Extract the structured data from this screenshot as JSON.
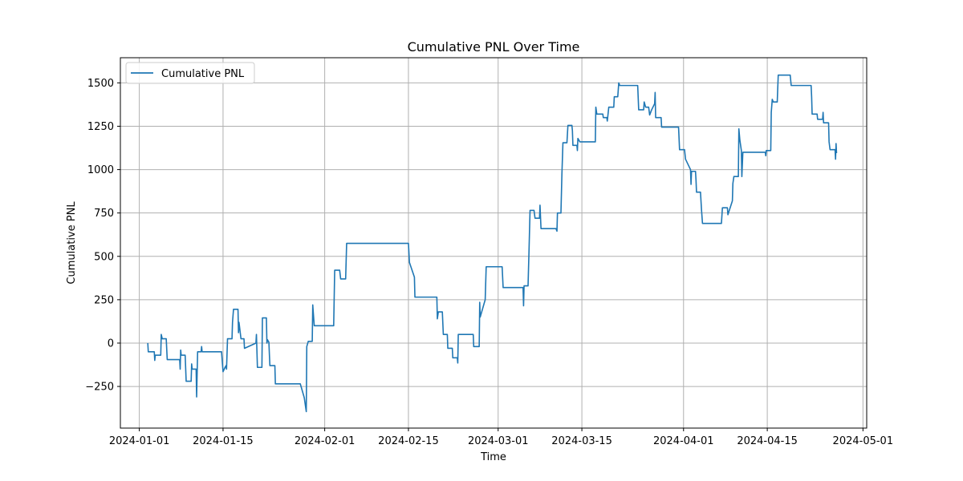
{
  "chart_data": {
    "type": "line",
    "title": "Cumulative PNL Over Time",
    "xlabel": "Time",
    "ylabel": "Cumulative PNL",
    "grid": true,
    "legend_placement": "upper-left",
    "colors": {
      "series": "#1f77b4",
      "grid": "#b0b0b0"
    },
    "x_ticks": [
      "2024-01-01",
      "2024-01-15",
      "2024-02-01",
      "2024-02-15",
      "2024-03-01",
      "2024-03-15",
      "2024-04-01",
      "2024-04-15",
      "2024-05-01"
    ],
    "y_ticks": [
      -250,
      0,
      250,
      500,
      750,
      1000,
      1250,
      1500
    ],
    "y_tick_labels": [
      "−250",
      "0",
      "250",
      "500",
      "750",
      "1000",
      "1250",
      "1500"
    ],
    "xlim": [
      "2023-12-28T20:00",
      "2024-05-01T15:00"
    ],
    "ylim": [
      -490,
      1645
    ],
    "series": [
      {
        "name": "Cumulative PNL",
        "points": [
          [
            "2024-01-02T10:00",
            0
          ],
          [
            "2024-01-02T12:00",
            -50
          ],
          [
            "2024-01-03T12:00",
            -50
          ],
          [
            "2024-01-03T14:00",
            -100
          ],
          [
            "2024-01-03T16:00",
            -70
          ],
          [
            "2024-01-04T14:00",
            -70
          ],
          [
            "2024-01-04T16:00",
            50
          ],
          [
            "2024-01-04T20:00",
            25
          ],
          [
            "2024-01-05T12:00",
            25
          ],
          [
            "2024-01-05T16:00",
            -95
          ],
          [
            "2024-01-07T18:00",
            -95
          ],
          [
            "2024-01-07T20:00",
            -150
          ],
          [
            "2024-01-07T22:00",
            -40
          ],
          [
            "2024-01-08T00:00",
            -70
          ],
          [
            "2024-01-08T16:00",
            -70
          ],
          [
            "2024-01-08T20:00",
            -220
          ],
          [
            "2024-01-09T16:00",
            -220
          ],
          [
            "2024-01-09T18:00",
            -120
          ],
          [
            "2024-01-09T20:00",
            -150
          ],
          [
            "2024-01-10T12:00",
            -150
          ],
          [
            "2024-01-10T14:00",
            -310
          ],
          [
            "2024-01-10T18:00",
            -50
          ],
          [
            "2024-01-11T08:00",
            -50
          ],
          [
            "2024-01-11T10:00",
            -20
          ],
          [
            "2024-01-11T12:00",
            -50
          ],
          [
            "2024-01-14T18:00",
            -50
          ],
          [
            "2024-01-15T00:00",
            -165
          ],
          [
            "2024-01-15T08:00",
            -140
          ],
          [
            "2024-01-15T12:00",
            -130
          ],
          [
            "2024-01-15T14:00",
            -150
          ],
          [
            "2024-01-15T18:00",
            25
          ],
          [
            "2024-01-16T12:00",
            25
          ],
          [
            "2024-01-16T14:00",
            120
          ],
          [
            "2024-01-16T18:00",
            195
          ],
          [
            "2024-01-17T12:00",
            195
          ],
          [
            "2024-01-17T14:00",
            60
          ],
          [
            "2024-01-17T16:00",
            120
          ],
          [
            "2024-01-18T00:00",
            25
          ],
          [
            "2024-01-18T12:00",
            25
          ],
          [
            "2024-01-18T14:00",
            -30
          ],
          [
            "2024-01-20T12:00",
            0
          ],
          [
            "2024-01-20T14:00",
            50
          ],
          [
            "2024-01-20T18:00",
            -140
          ],
          [
            "2024-01-21T12:00",
            -140
          ],
          [
            "2024-01-21T14:00",
            145
          ],
          [
            "2024-01-22T06:00",
            145
          ],
          [
            "2024-01-22T08:00",
            0
          ],
          [
            "2024-01-22T10:00",
            20
          ],
          [
            "2024-01-22T16:00",
            5
          ],
          [
            "2024-01-22T18:00",
            -65
          ],
          [
            "2024-01-22T20:00",
            -130
          ],
          [
            "2024-01-23T16:00",
            -130
          ],
          [
            "2024-01-23T18:00",
            -235
          ],
          [
            "2024-01-27T22:00",
            -235
          ],
          [
            "2024-01-28T14:00",
            -315
          ],
          [
            "2024-01-28T22:00",
            -395
          ],
          [
            "2024-01-29T00:00",
            -20
          ],
          [
            "2024-01-29T06:00",
            10
          ],
          [
            "2024-01-29T22:00",
            10
          ],
          [
            "2024-01-30T00:00",
            220
          ],
          [
            "2024-01-30T06:00",
            100
          ],
          [
            "2024-02-02T12:00",
            100
          ],
          [
            "2024-02-02T16:00",
            420
          ],
          [
            "2024-02-03T12:00",
            420
          ],
          [
            "2024-02-03T16:00",
            370
          ],
          [
            "2024-02-04T12:00",
            370
          ],
          [
            "2024-02-04T16:00",
            575
          ],
          [
            "2024-02-15T00:00",
            575
          ],
          [
            "2024-02-15T04:00",
            465
          ],
          [
            "2024-02-16T00:00",
            380
          ],
          [
            "2024-02-16T02:00",
            265
          ],
          [
            "2024-02-19T18:00",
            265
          ],
          [
            "2024-02-19T20:00",
            140
          ],
          [
            "2024-02-20T00:00",
            180
          ],
          [
            "2024-02-20T16:00",
            180
          ],
          [
            "2024-02-20T20:00",
            50
          ],
          [
            "2024-02-21T12:00",
            50
          ],
          [
            "2024-02-21T14:00",
            -30
          ],
          [
            "2024-02-22T08:00",
            -30
          ],
          [
            "2024-02-22T10:00",
            -85
          ],
          [
            "2024-02-23T04:00",
            -85
          ],
          [
            "2024-02-23T06:00",
            -115
          ],
          [
            "2024-02-23T08:00",
            50
          ],
          [
            "2024-02-25T20:00",
            50
          ],
          [
            "2024-02-25T22:00",
            -20
          ],
          [
            "2024-02-26T20:00",
            -20
          ],
          [
            "2024-02-26T22:00",
            235
          ],
          [
            "2024-02-27T00:00",
            150
          ],
          [
            "2024-02-27T20:00",
            250
          ],
          [
            "2024-02-28T00:00",
            440
          ],
          [
            "2024-03-01T16:00",
            440
          ],
          [
            "2024-03-01T20:00",
            320
          ],
          [
            "2024-03-05T04:00",
            320
          ],
          [
            "2024-03-05T06:00",
            215
          ],
          [
            "2024-03-05T08:00",
            330
          ],
          [
            "2024-03-06T00:00",
            330
          ],
          [
            "2024-03-06T04:00",
            540
          ],
          [
            "2024-03-06T08:00",
            765
          ],
          [
            "2024-03-07T00:00",
            765
          ],
          [
            "2024-03-07T04:00",
            720
          ],
          [
            "2024-03-07T22:00",
            720
          ],
          [
            "2024-03-08T00:00",
            795
          ],
          [
            "2024-03-08T04:00",
            660
          ],
          [
            "2024-03-10T16:00",
            660
          ],
          [
            "2024-03-10T20:00",
            645
          ],
          [
            "2024-03-10T22:00",
            750
          ],
          [
            "2024-03-11T12:00",
            750
          ],
          [
            "2024-03-11T16:00",
            980
          ],
          [
            "2024-03-11T20:00",
            1155
          ],
          [
            "2024-03-12T12:00",
            1155
          ],
          [
            "2024-03-12T16:00",
            1255
          ],
          [
            "2024-03-13T08:00",
            1255
          ],
          [
            "2024-03-13T10:00",
            1225
          ],
          [
            "2024-03-13T12:00",
            1140
          ],
          [
            "2024-03-14T04:00",
            1140
          ],
          [
            "2024-03-14T06:00",
            1110
          ],
          [
            "2024-03-14T08:00",
            1180
          ],
          [
            "2024-03-14T16:00",
            1160
          ],
          [
            "2024-03-17T06:00",
            1160
          ],
          [
            "2024-03-17T08:00",
            1360
          ],
          [
            "2024-03-17T12:00",
            1320
          ],
          [
            "2024-03-18T12:00",
            1320
          ],
          [
            "2024-03-18T14:00",
            1300
          ],
          [
            "2024-03-19T04:00",
            1300
          ],
          [
            "2024-03-19T06:00",
            1280
          ],
          [
            "2024-03-19T12:00",
            1360
          ],
          [
            "2024-03-20T08:00",
            1360
          ],
          [
            "2024-03-20T10:00",
            1420
          ],
          [
            "2024-03-21T00:00",
            1420
          ],
          [
            "2024-03-21T04:00",
            1500
          ],
          [
            "2024-03-21T08:00",
            1485
          ],
          [
            "2024-03-24T08:00",
            1485
          ],
          [
            "2024-03-24T12:00",
            1345
          ],
          [
            "2024-03-25T08:00",
            1345
          ],
          [
            "2024-03-25T10:00",
            1390
          ],
          [
            "2024-03-25T16:00",
            1360
          ],
          [
            "2024-03-26T04:00",
            1360
          ],
          [
            "2024-03-26T08:00",
            1315
          ],
          [
            "2024-03-26T16:00",
            1345
          ],
          [
            "2024-03-27T04:00",
            1380
          ],
          [
            "2024-03-27T06:00",
            1445
          ],
          [
            "2024-03-27T08:00",
            1300
          ],
          [
            "2024-03-28T06:00",
            1300
          ],
          [
            "2024-03-28T08:00",
            1245
          ],
          [
            "2024-03-31T04:00",
            1245
          ],
          [
            "2024-03-31T08:00",
            1115
          ],
          [
            "2024-04-01T04:00",
            1115
          ],
          [
            "2024-04-01T08:00",
            1060
          ],
          [
            "2024-04-02T04:00",
            1000
          ],
          [
            "2024-04-02T06:00",
            915
          ],
          [
            "2024-04-02T08:00",
            990
          ],
          [
            "2024-04-03T00:00",
            990
          ],
          [
            "2024-04-03T02:00",
            940
          ],
          [
            "2024-04-03T04:00",
            870
          ],
          [
            "2024-04-03T20:00",
            870
          ],
          [
            "2024-04-04T00:00",
            770
          ],
          [
            "2024-04-04T04:00",
            690
          ],
          [
            "2024-04-07T08:00",
            690
          ],
          [
            "2024-04-07T12:00",
            780
          ],
          [
            "2024-04-08T08:00",
            780
          ],
          [
            "2024-04-08T10:00",
            740
          ],
          [
            "2024-04-09T04:00",
            820
          ],
          [
            "2024-04-09T06:00",
            920
          ],
          [
            "2024-04-09T10:00",
            960
          ],
          [
            "2024-04-10T04:00",
            960
          ],
          [
            "2024-04-10T06:00",
            1235
          ],
          [
            "2024-04-10T10:00",
            1170
          ],
          [
            "2024-04-10T16:00",
            1110
          ],
          [
            "2024-04-10T18:00",
            960
          ],
          [
            "2024-04-10T22:00",
            1100
          ],
          [
            "2024-04-14T16:00",
            1100
          ],
          [
            "2024-04-14T18:00",
            1080
          ],
          [
            "2024-04-14T20:00",
            1110
          ],
          [
            "2024-04-15T14:00",
            1110
          ],
          [
            "2024-04-15T16:00",
            1330
          ],
          [
            "2024-04-15T20:00",
            1405
          ],
          [
            "2024-04-16T00:00",
            1390
          ],
          [
            "2024-04-16T16:00",
            1390
          ],
          [
            "2024-04-16T20:00",
            1545
          ],
          [
            "2024-04-18T20:00",
            1545
          ],
          [
            "2024-04-19T00:00",
            1485
          ],
          [
            "2024-04-22T08:00",
            1485
          ],
          [
            "2024-04-22T10:00",
            1420
          ],
          [
            "2024-04-22T12:00",
            1320
          ],
          [
            "2024-04-23T08:00",
            1320
          ],
          [
            "2024-04-23T10:00",
            1290
          ],
          [
            "2024-04-24T06:00",
            1290
          ],
          [
            "2024-04-24T08:00",
            1330
          ],
          [
            "2024-04-24T10:00",
            1270
          ],
          [
            "2024-04-25T06:00",
            1270
          ],
          [
            "2024-04-25T08:00",
            1160
          ],
          [
            "2024-04-25T12:00",
            1115
          ],
          [
            "2024-04-26T08:00",
            1115
          ],
          [
            "2024-04-26T10:00",
            1060
          ],
          [
            "2024-04-26T12:00",
            1150
          ],
          [
            "2024-04-26T14:00",
            1095
          ]
        ]
      }
    ]
  }
}
